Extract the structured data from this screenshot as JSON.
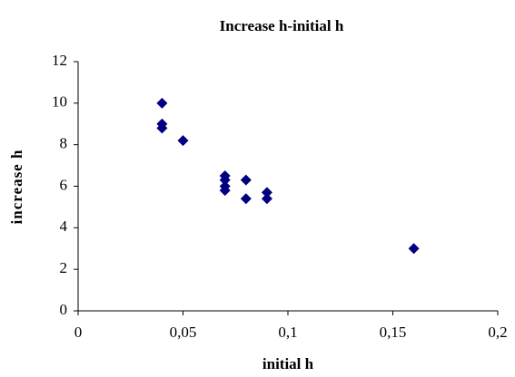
{
  "chart_data": {
    "type": "scatter",
    "title": "Increase h-initial h",
    "x_label": "initial h",
    "y_label": "increase h",
    "x": [
      0.04,
      0.04,
      0.04,
      0.05,
      0.07,
      0.07,
      0.07,
      0.07,
      0.08,
      0.08,
      0.09,
      0.09,
      0.16
    ],
    "values": [
      10,
      9,
      8.8,
      8.2,
      6.5,
      6.3,
      6.0,
      5.8,
      6.3,
      5.4,
      5.7,
      5.4,
      3
    ],
    "color": "#000080",
    "xlim": [
      0,
      0.2
    ],
    "xticks": [
      0,
      {
        "value": 0.05,
        "label": "0,05"
      },
      {
        "value": 0.1,
        "label": "0,1"
      },
      {
        "value": 0.15,
        "label": "0,15"
      },
      {
        "value": 0.2,
        "label": "0,2"
      }
    ],
    "ylim": [
      0,
      12
    ],
    "yticks": [
      0,
      2,
      4,
      6,
      8,
      10,
      12
    ],
    "grid": false
  }
}
